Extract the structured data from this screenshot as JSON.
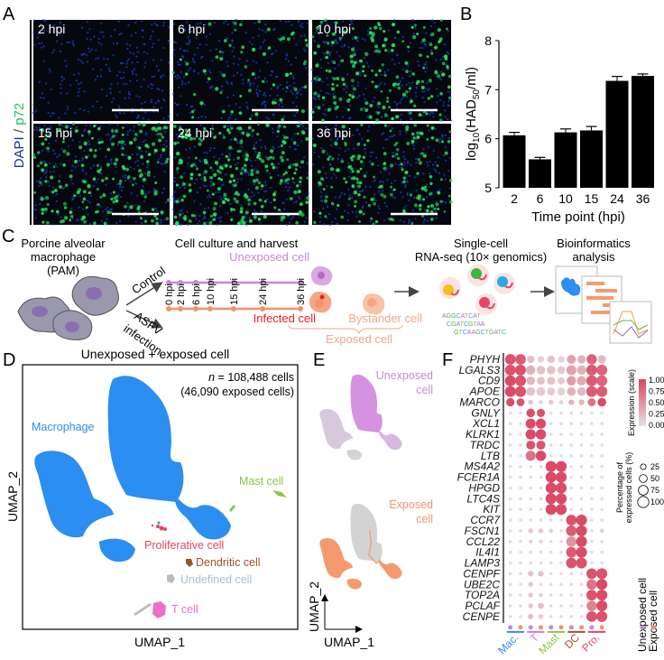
{
  "panel_labels": {
    "a": "A",
    "b": "B",
    "c": "C",
    "d": "D",
    "e": "E",
    "f": "F"
  },
  "panel_a": {
    "stain_label_dapi": "DAPI",
    "stain_label_sep": " / ",
    "stain_label_p72": "p72",
    "tiles": [
      {
        "label": "2 hpi"
      },
      {
        "label": "6 hpi"
      },
      {
        "label": "10 hpi"
      },
      {
        "label": "15 hpi"
      },
      {
        "label": "24 hpi"
      },
      {
        "label": "36 hpi"
      }
    ],
    "colors": {
      "dapi": "#1a3fd0",
      "p72": "#22e060"
    }
  },
  "chart_data": {
    "type": "bar",
    "categories": [
      "2",
      "6",
      "10",
      "15",
      "24",
      "36"
    ],
    "values": [
      6.07,
      5.58,
      6.13,
      6.17,
      7.18,
      7.28
    ],
    "errors": [
      0.06,
      0.04,
      0.07,
      0.08,
      0.09,
      0.04
    ],
    "xlabel": "Time point (hpi)",
    "ylabel_prefix": "log",
    "ylabel_sub1": "10",
    "ylabel_mid": "(HAD",
    "ylabel_sub2": "50",
    "ylabel_suffix": "/ml)",
    "ylim": [
      5,
      8
    ],
    "yticks": [
      "5",
      "6",
      "7",
      "8"
    ],
    "grid": false,
    "bar_color": "#000000"
  },
  "panel_c": {
    "pam_title": [
      "Porcine alveolar",
      "macrophage",
      "(PAM)"
    ],
    "control_label": "Control",
    "infection_label": [
      "ASFV",
      "infection"
    ],
    "culture_title": "Cell culture and harvest",
    "timepoints": [
      "0 hpi",
      "2 hpi",
      "6 hpi",
      "10 hpi",
      "15 hpi",
      "24 hpi",
      "36 hpi"
    ],
    "unexposed_label": "Unexposed cell",
    "infected_label": "Infected cell",
    "bystander_label": "Bystander cell",
    "exposed_label": "Exposed cell",
    "seq_title": [
      "Single-cell",
      "RNA-seq (10× genomics)"
    ],
    "sequences": [
      "AGGCATCAT",
      "CGATCGTAA",
      "GTCAAGCTGATC"
    ],
    "bioinf_title": [
      "Bioinformatics",
      "analysis"
    ],
    "colors": {
      "control": "#c48ad6",
      "infection": "#f0946a",
      "infected": "#e8202a",
      "bystander": "#f4a585",
      "exposed": "#f0946a"
    }
  },
  "panel_d": {
    "title": "Unexposed + exposed cell",
    "n_label_italic": "n",
    "n_label": " = 108,488 cells",
    "exposed_count": "(46,090 exposed cells)",
    "xlabel": "UMAP_1",
    "ylabel": "UMAP_2",
    "clusters": [
      {
        "label": "Macrophage",
        "color": "#2b8ef0"
      },
      {
        "label": "Mast cell",
        "color": "#8fc34a"
      },
      {
        "label": "Proliferative cell",
        "color": "#e8455e"
      },
      {
        "label": "Dendritic cell",
        "color": "#a0522d"
      },
      {
        "label": "Undefined cell",
        "color": "#a9bfdc"
      },
      {
        "label": "T cell",
        "color": "#e870c8"
      }
    ]
  },
  "panel_e": {
    "unexposed_label": [
      "Unexposed",
      "cell"
    ],
    "exposed_label": [
      "Exposed",
      "cell"
    ],
    "xlabel": "UMAP_1",
    "ylabel": "UMAP_2",
    "colors": {
      "unexposed": "#d592e0",
      "exposed": "#f59a6e",
      "background": "#d3d3d3"
    }
  },
  "panel_f": {
    "genes": [
      "PHYH",
      "LGALS3",
      "CD9",
      "APOE",
      "MARCO",
      "GNLY",
      "XCL1",
      "KLRK1",
      "TRDC",
      "LTB",
      "MS4A2",
      "FCER1A",
      "HPGD",
      "LTC4S",
      "KIT",
      "CCR7",
      "FSCN1",
      "CCL22",
      "IL4I1",
      "LAMP3",
      "CENPF",
      "UBE2C",
      "TOP2A",
      "PCLAF",
      "CENPE"
    ],
    "groups": [
      {
        "label": "Mac.",
        "color": "#2b8ef0"
      },
      {
        "label": "T",
        "color": "#e870c8"
      },
      {
        "label": "Mast",
        "color": "#8fc34a"
      },
      {
        "label": "DC",
        "color": "#a0522d"
      },
      {
        "label": "Pro.",
        "color": "#e8455e"
      }
    ],
    "conditions": [
      {
        "label": "Unexposed cell",
        "color": "#c48ad6"
      },
      {
        "label": "Exposed cell",
        "color": "#f0946a"
      }
    ],
    "pct": [
      [
        90,
        90,
        45,
        35,
        45,
        35,
        65,
        55,
        85,
        55
      ],
      [
        95,
        95,
        70,
        60,
        60,
        50,
        80,
        70,
        95,
        95
      ],
      [
        95,
        95,
        60,
        50,
        50,
        40,
        70,
        70,
        95,
        95
      ],
      [
        95,
        95,
        60,
        60,
        50,
        50,
        60,
        60,
        95,
        95
      ],
      [
        55,
        50,
        20,
        15,
        20,
        15,
        25,
        25,
        50,
        60
      ],
      [
        8,
        8,
        60,
        55,
        8,
        8,
        8,
        8,
        8,
        8
      ],
      [
        8,
        8,
        80,
        80,
        8,
        8,
        8,
        8,
        8,
        8
      ],
      [
        8,
        8,
        85,
        85,
        8,
        8,
        8,
        8,
        8,
        8
      ],
      [
        8,
        8,
        65,
        65,
        8,
        8,
        8,
        8,
        8,
        8
      ],
      [
        8,
        8,
        80,
        85,
        8,
        8,
        8,
        8,
        8,
        8
      ],
      [
        8,
        8,
        8,
        8,
        95,
        95,
        8,
        8,
        8,
        8
      ],
      [
        8,
        8,
        8,
        8,
        95,
        95,
        8,
        8,
        8,
        8
      ],
      [
        8,
        8,
        8,
        8,
        95,
        95,
        8,
        8,
        8,
        8
      ],
      [
        8,
        8,
        8,
        8,
        95,
        95,
        8,
        8,
        8,
        8
      ],
      [
        8,
        8,
        8,
        8,
        95,
        95,
        8,
        8,
        8,
        8
      ],
      [
        8,
        8,
        8,
        8,
        8,
        8,
        90,
        95,
        8,
        8
      ],
      [
        8,
        8,
        20,
        20,
        15,
        8,
        90,
        95,
        8,
        15
      ],
      [
        8,
        8,
        12,
        12,
        8,
        8,
        85,
        95,
        8,
        8
      ],
      [
        8,
        8,
        8,
        8,
        8,
        8,
        90,
        95,
        8,
        8
      ],
      [
        8,
        8,
        8,
        8,
        8,
        8,
        90,
        95,
        8,
        8
      ],
      [
        8,
        8,
        25,
        25,
        8,
        8,
        8,
        8,
        90,
        95
      ],
      [
        8,
        8,
        20,
        8,
        8,
        8,
        8,
        8,
        85,
        95
      ],
      [
        8,
        8,
        20,
        15,
        8,
        8,
        8,
        8,
        90,
        95
      ],
      [
        8,
        8,
        20,
        30,
        8,
        8,
        8,
        8,
        85,
        95
      ],
      [
        8,
        8,
        25,
        20,
        8,
        8,
        8,
        8,
        90,
        95
      ]
    ],
    "expr": [
      [
        0.9,
        0.85,
        0.2,
        0.1,
        0.2,
        0.1,
        0.4,
        0.3,
        0.8,
        0.25
      ],
      [
        0.9,
        0.9,
        0.3,
        0.2,
        0.2,
        0.15,
        0.4,
        0.3,
        0.85,
        0.8
      ],
      [
        0.95,
        0.9,
        0.25,
        0.2,
        0.2,
        0.15,
        0.45,
        0.35,
        0.85,
        0.8
      ],
      [
        0.95,
        0.9,
        0.2,
        0.15,
        0.15,
        0.1,
        0.3,
        0.25,
        0.85,
        0.85
      ],
      [
        0.95,
        0.9,
        0.2,
        0.1,
        0.15,
        0.1,
        0.3,
        0.3,
        0.7,
        0.95
      ],
      [
        0.05,
        0.05,
        0.9,
        0.9,
        0.05,
        0.05,
        0.05,
        0.05,
        0.05,
        0.05
      ],
      [
        0.05,
        0.05,
        0.95,
        0.95,
        0.05,
        0.05,
        0.05,
        0.05,
        0.05,
        0.05
      ],
      [
        0.05,
        0.05,
        0.95,
        0.95,
        0.05,
        0.05,
        0.05,
        0.05,
        0.05,
        0.05
      ],
      [
        0.05,
        0.05,
        0.9,
        0.9,
        0.05,
        0.05,
        0.05,
        0.05,
        0.05,
        0.05
      ],
      [
        0.05,
        0.05,
        0.7,
        0.95,
        0.05,
        0.05,
        0.05,
        0.05,
        0.05,
        0.05
      ],
      [
        0.05,
        0.05,
        0.05,
        0.05,
        0.95,
        0.95,
        0.05,
        0.05,
        0.05,
        0.05
      ],
      [
        0.05,
        0.05,
        0.05,
        0.05,
        0.95,
        0.95,
        0.05,
        0.05,
        0.05,
        0.05
      ],
      [
        0.05,
        0.05,
        0.05,
        0.05,
        0.95,
        0.95,
        0.05,
        0.05,
        0.05,
        0.05
      ],
      [
        0.05,
        0.05,
        0.05,
        0.05,
        0.95,
        0.95,
        0.05,
        0.05,
        0.05,
        0.05
      ],
      [
        0.05,
        0.05,
        0.05,
        0.05,
        0.95,
        0.95,
        0.05,
        0.05,
        0.05,
        0.05
      ],
      [
        0.05,
        0.05,
        0.05,
        0.05,
        0.05,
        0.05,
        0.9,
        0.95,
        0.05,
        0.05
      ],
      [
        0.05,
        0.05,
        0.15,
        0.15,
        0.1,
        0.05,
        0.85,
        0.95,
        0.05,
        0.1
      ],
      [
        0.05,
        0.05,
        0.1,
        0.1,
        0.05,
        0.05,
        0.5,
        0.95,
        0.05,
        0.05
      ],
      [
        0.05,
        0.05,
        0.05,
        0.05,
        0.05,
        0.05,
        0.85,
        0.95,
        0.05,
        0.05
      ],
      [
        0.05,
        0.05,
        0.05,
        0.05,
        0.05,
        0.05,
        0.9,
        0.9,
        0.05,
        0.05
      ],
      [
        0.05,
        0.05,
        0.2,
        0.2,
        0.05,
        0.05,
        0.05,
        0.05,
        0.9,
        0.9
      ],
      [
        0.05,
        0.05,
        0.15,
        0.05,
        0.05,
        0.05,
        0.05,
        0.05,
        0.7,
        0.95
      ],
      [
        0.05,
        0.05,
        0.15,
        0.1,
        0.05,
        0.05,
        0.05,
        0.05,
        0.9,
        0.95
      ],
      [
        0.05,
        0.05,
        0.15,
        0.2,
        0.05,
        0.05,
        0.05,
        0.05,
        0.6,
        0.95
      ],
      [
        0.05,
        0.05,
        0.2,
        0.15,
        0.05,
        0.05,
        0.05,
        0.05,
        0.9,
        0.9
      ]
    ],
    "color_legend": {
      "title": "Expression (scale)",
      "ticks": [
        "1.00",
        "0.75",
        "0.50",
        "0.25",
        "0.00"
      ],
      "low": "#e6e2e4",
      "high": "#d9435e"
    },
    "size_legend": {
      "title": [
        "Percentage of",
        "expressed cells (%)"
      ],
      "ticks": [
        "25",
        "50",
        "75",
        "100"
      ]
    }
  }
}
